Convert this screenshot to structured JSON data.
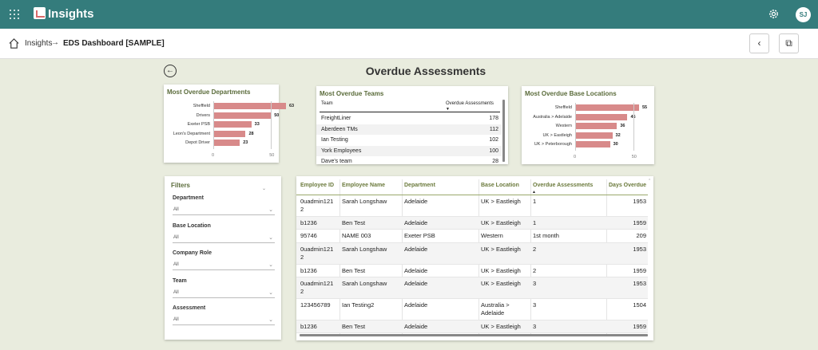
{
  "topbar": {
    "app_title": "Insights",
    "avatar_initials": "SJ",
    "color": "#347c7c"
  },
  "breadcrumb": {
    "root": "Insights",
    "separator": "→",
    "current": "EDS Dashboard [SAMPLE]"
  },
  "header_buttons": {
    "back": "‹",
    "share": "⧉"
  },
  "page": {
    "title": "Overdue Assessments",
    "back_icon": "←"
  },
  "departments_chart": {
    "title": "Most Overdue Departments",
    "chart_data": {
      "type": "bar",
      "categories": [
        "Sheffield",
        "Drivers",
        "Exeter PSB",
        "Leon's Department",
        "Depot Driver"
      ],
      "values": [
        63,
        50,
        33,
        28,
        23
      ],
      "ticks": [
        "0",
        "50"
      ],
      "bar_color": "#d88a8a"
    }
  },
  "teams_table": {
    "title": "Most Overdue Teams",
    "headers": {
      "team": "Team",
      "count": "Overdue Assessments"
    },
    "rows": [
      {
        "team": "FreightLiner",
        "count": "178"
      },
      {
        "team": "Aberdeen TMs",
        "count": "112"
      },
      {
        "team": "Ian Testing",
        "count": "102"
      },
      {
        "team": "York Employees",
        "count": "100"
      },
      {
        "team": "Dave's team",
        "count": "28"
      }
    ]
  },
  "locations_chart": {
    "title": "Most Overdue Base Locations",
    "chart_data": {
      "type": "bar",
      "categories": [
        "Sheffield",
        "Australia > Adelaide",
        "Western",
        "UK > Eastleigh",
        "UK > Peterborough"
      ],
      "values": [
        55,
        45,
        36,
        32,
        30
      ],
      "ticks": [
        "0",
        "50"
      ],
      "bar_color": "#d88a8a"
    }
  },
  "filters": {
    "title": "Filters",
    "items": [
      {
        "label": "Department",
        "value": "All"
      },
      {
        "label": "Base Location",
        "value": "All"
      },
      {
        "label": "Company Role",
        "value": "All"
      },
      {
        "label": "Team",
        "value": "All"
      },
      {
        "label": "Assessment",
        "value": "All"
      }
    ]
  },
  "main_table": {
    "headers": [
      "Employee ID",
      "Employee Name",
      "Department",
      "Base Location",
      "Overdue Assessments",
      "Days Overdue"
    ],
    "rows": [
      [
        "0uadmin121\n2",
        "Sarah Longshaw",
        "Adelaide",
        "UK > Eastleigh",
        "1",
        "1953"
      ],
      [
        "b1236",
        "Ben Test",
        "Adelaide",
        "UK > Eastleigh",
        "1",
        "1959"
      ],
      [
        "95746",
        "NAME 003",
        "Exeter PSB",
        "Western",
        "1st month",
        "209"
      ],
      [
        "0uadmin121\n2",
        "Sarah Longshaw",
        "Adelaide",
        "UK > Eastleigh",
        "2",
        "1953"
      ],
      [
        "b1236",
        "Ben Test",
        "Adelaide",
        "UK > Eastleigh",
        "2",
        "1959"
      ],
      [
        "0uadmin121\n2",
        "Sarah Longshaw",
        "Adelaide",
        "UK > Eastleigh",
        "3",
        "1953"
      ],
      [
        "123456789",
        "Ian Testing2",
        "Adelaide",
        "Australia >\nAdelaide",
        "3",
        "1504"
      ],
      [
        "b1236",
        "Ben Test",
        "Adelaide",
        "UK > Eastleigh",
        "3",
        "1959"
      ]
    ]
  }
}
